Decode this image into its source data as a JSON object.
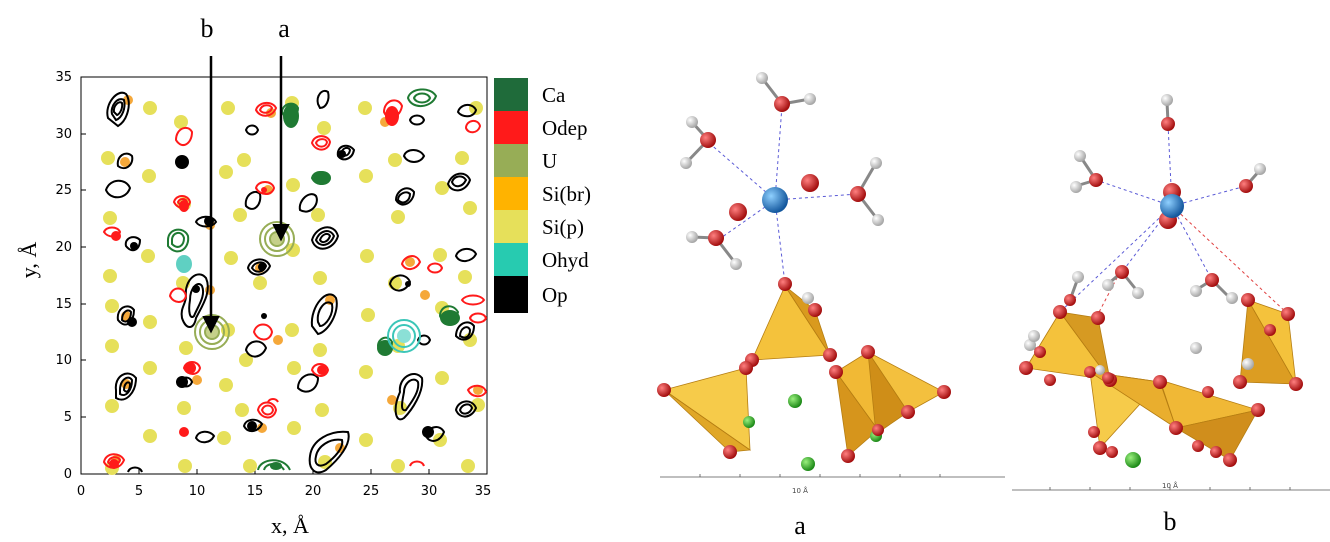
{
  "figure": {
    "left_panel": {
      "arrow_labels": [
        "b",
        "a"
      ],
      "xlabel": "x, Å",
      "ylabel": "y, Å",
      "xticks": [
        "0",
        "5",
        "10",
        "15",
        "20",
        "25",
        "30",
        "35"
      ],
      "yticks": [
        "0",
        "5",
        "10",
        "15",
        "20",
        "25",
        "30",
        "35"
      ],
      "legend": [
        {
          "label": "Ca",
          "color": "#1f6b3a"
        },
        {
          "label": "Odep",
          "color": "#ff1a1a"
        },
        {
          "label": "U",
          "color": "#97ad56"
        },
        {
          "label": "Si(br)",
          "color": "#ffb300"
        },
        {
          "label": "Si(p)",
          "color": "#e6e05a"
        },
        {
          "label": "Ohyd",
          "color": "#27cbb0"
        },
        {
          "label": "Op",
          "color": "#000000"
        }
      ]
    },
    "middle_panel": {
      "label": "a",
      "scale_label": "10 Å",
      "colors": {
        "uranium": "#1e72c8",
        "oxygen": "#d11a1a",
        "hydrogen": "#e8e8e8",
        "tetrahedra": "#f2b62a",
        "calcium": "#3dbf2c"
      }
    },
    "right_panel": {
      "label": "b",
      "scale_label": "10 Å"
    }
  }
}
